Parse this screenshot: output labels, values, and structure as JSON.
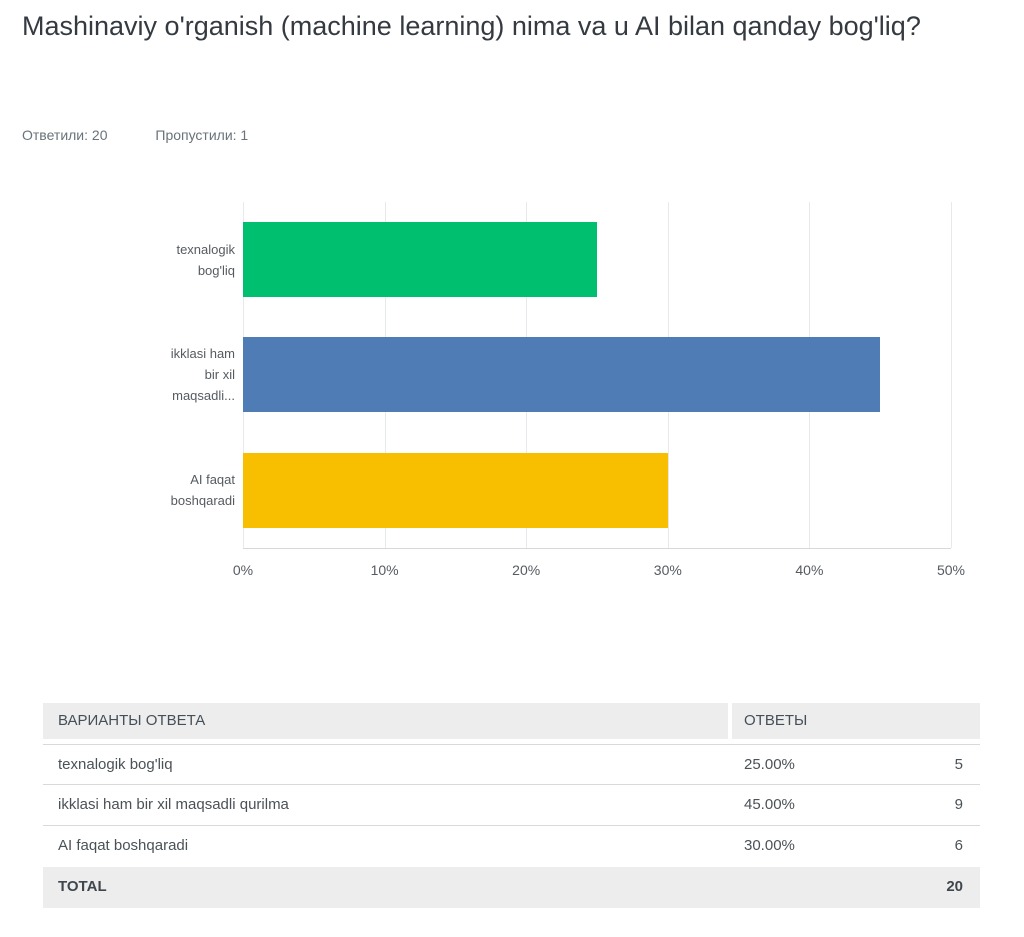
{
  "page": {
    "title": "Mashinaviy o'rganish (machine learning) nima va u AI bilan qanday bog'liq?",
    "answered": "Ответили: 20",
    "skipped": "Пропустили: 1"
  },
  "chart_data": {
    "type": "bar",
    "orientation": "horizontal",
    "title": "",
    "xlabel": "",
    "ylabel": "",
    "xlim": [
      0,
      50
    ],
    "grid": true,
    "legend": "none",
    "categories": [
      "texnalogik bog'liq",
      "ikklasi ham bir xil maqsadli...",
      "AI faqat boshqaradi"
    ],
    "category_lines": [
      [
        "texnalogik",
        "bog'liq"
      ],
      [
        "ikklasi ham",
        "bir xil",
        "maqsadli..."
      ],
      [
        "AI faqat",
        "boshqaradi"
      ]
    ],
    "values": [
      25,
      45,
      30
    ],
    "bar_colors": [
      "#00BF6F",
      "#507CB5",
      "#F8BE00"
    ],
    "x_tick_values": [
      0,
      10,
      20,
      30,
      40,
      50
    ],
    "x_tick_labels": [
      "0%",
      "10%",
      "20%",
      "30%",
      "40%",
      "50%"
    ]
  },
  "table": {
    "headers": [
      "ВАРИАНТЫ ОТВЕТА",
      "ОТВЕТЫ"
    ],
    "rows": [
      {
        "label": "texnalogik bog'liq",
        "percent": "25.00%",
        "count": "5"
      },
      {
        "label": "ikklasi ham bir xil maqsadli qurilma",
        "percent": "45.00%",
        "count": "9"
      },
      {
        "label": "AI faqat boshqaradi",
        "percent": "30.00%",
        "count": "6"
      }
    ],
    "total_label": "TOTAL",
    "total_value": "20"
  }
}
